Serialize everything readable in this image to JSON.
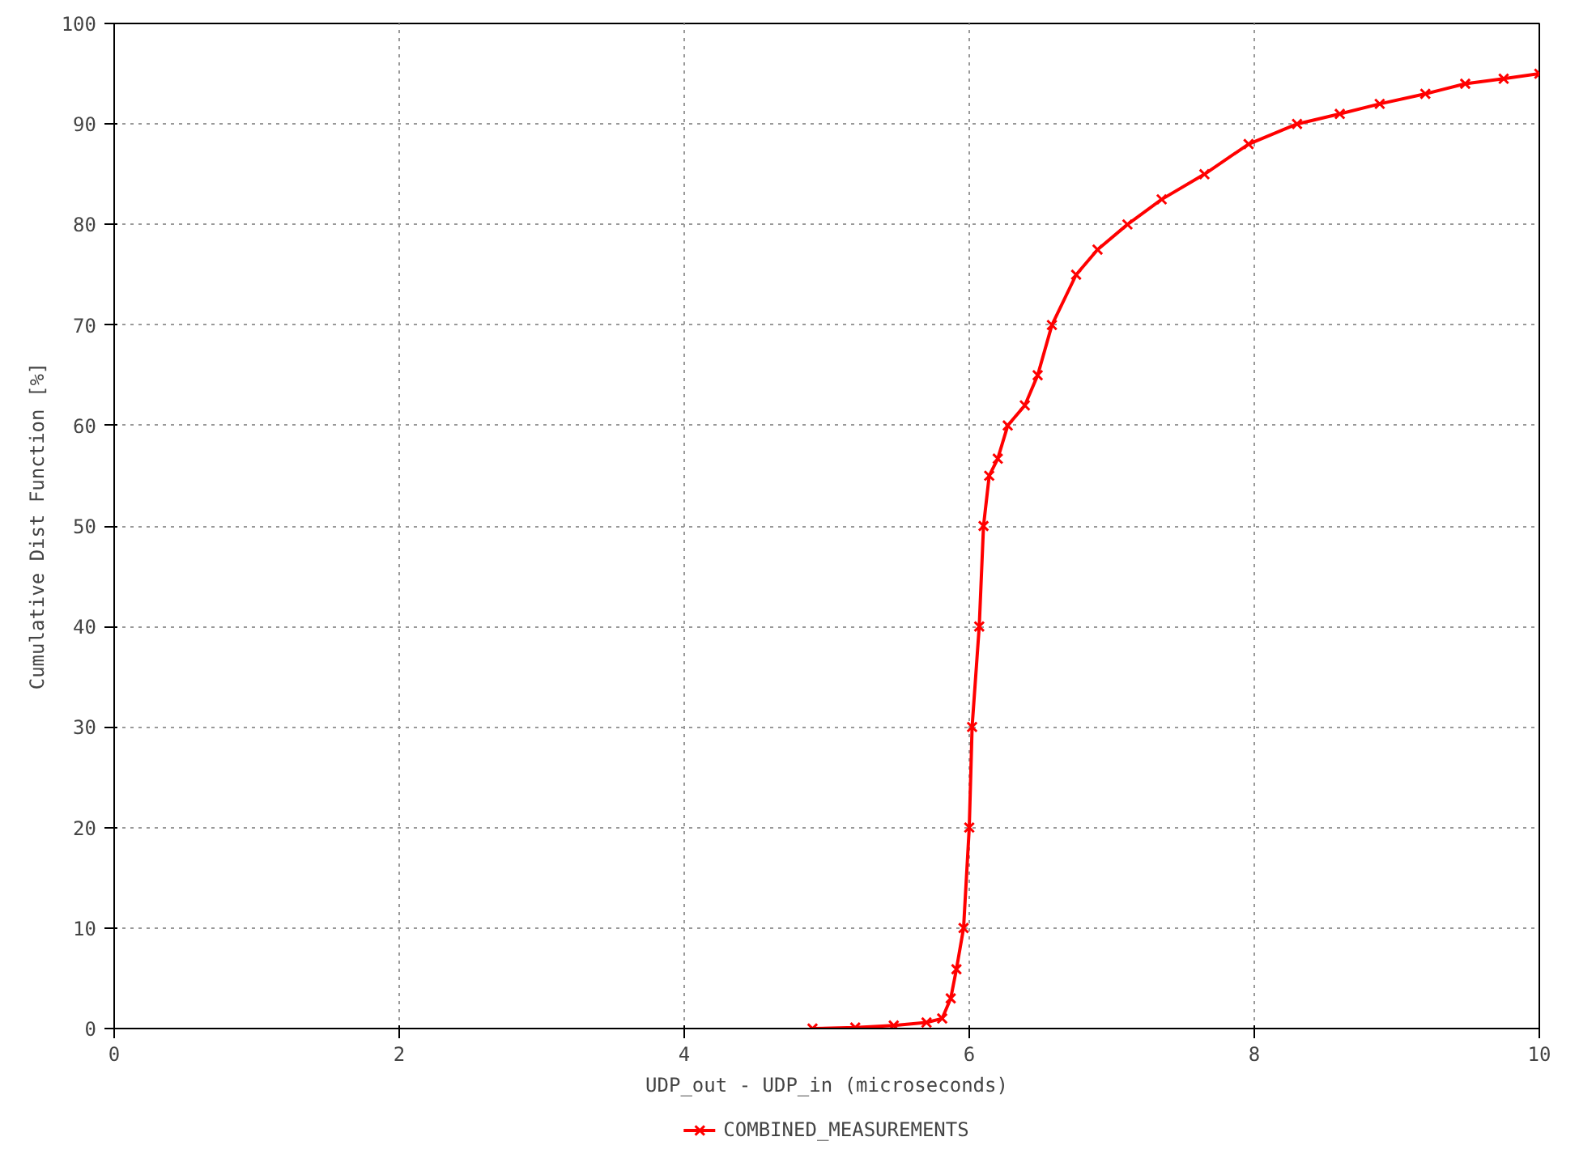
{
  "chart_data": {
    "type": "line",
    "xlabel": "UDP_out - UDP_in (microseconds)",
    "ylabel": "Cumulative Dist Function [%]",
    "xlim": [
      0,
      10
    ],
    "xticks": [
      0,
      2,
      4,
      6,
      8,
      10
    ],
    "ylim": [
      0,
      100
    ],
    "yticks": [
      0,
      10,
      20,
      30,
      40,
      50,
      60,
      70,
      80,
      90,
      100
    ],
    "grid": true,
    "legend": "bottom",
    "marker": "cross",
    "line_style": "solid",
    "series": [
      {
        "name": "COMBINED_MEASUREMENTS",
        "color": "#ff0000",
        "x": [
          4.9,
          5.2,
          5.47,
          5.7,
          5.81,
          5.87,
          5.91,
          5.96,
          6.0,
          6.02,
          6.07,
          6.1,
          6.14,
          6.2,
          6.27,
          6.39,
          6.48,
          6.58,
          6.75,
          6.9,
          7.11,
          7.35,
          7.65,
          7.96,
          8.3,
          8.6,
          8.88,
          9.2,
          9.48,
          9.75,
          10.0
        ],
        "values": [
          0,
          0.1,
          0.3,
          0.6,
          1,
          3,
          5.9,
          10,
          20,
          30,
          40,
          50,
          55,
          56.7,
          60,
          62,
          65,
          70,
          75,
          77.5,
          80,
          82.5,
          85,
          88,
          90,
          91,
          92,
          93,
          94,
          94.5,
          95
        ]
      }
    ]
  }
}
